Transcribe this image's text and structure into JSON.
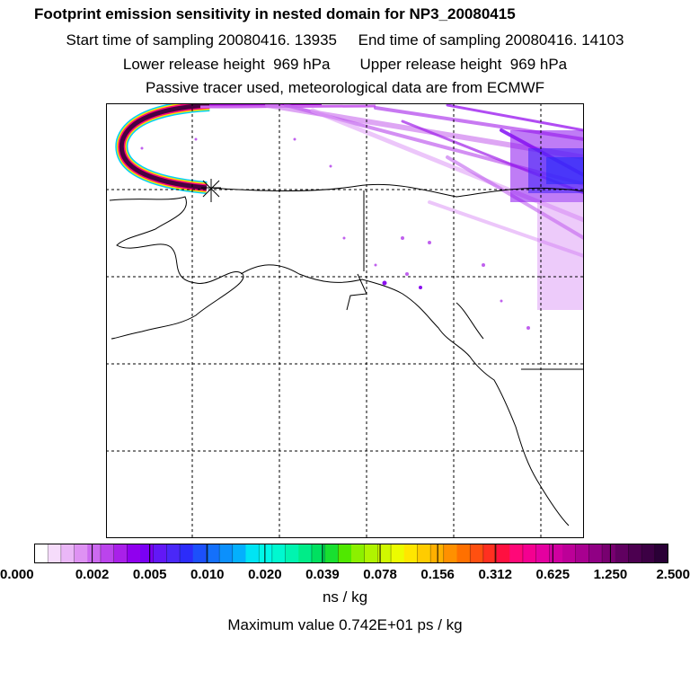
{
  "title": "Footprint emission sensitivity in nested domain for NP3_20080415",
  "start_label": "Start time of sampling 20080416. 13935",
  "end_label": "End time of sampling 20080416. 14103",
  "lower_label": "Lower release height  969 hPa",
  "upper_label": "Upper release height  969 hPa",
  "tracer_label": "Passive tracer used, meteorological data are from ECMWF",
  "colorbar": {
    "ticks": [
      "0.000",
      "0.002",
      "0.005",
      "0.010",
      "0.020",
      "0.039",
      "0.078",
      "0.156",
      "0.312",
      "0.625",
      "1.250",
      "2.500"
    ],
    "colors": [
      "#ffffff",
      "#f6dcfb",
      "#eab7f7",
      "#de92f3",
      "#cc6af0",
      "#bb44ec",
      "#a920e9",
      "#9000ee",
      "#7a00f4",
      "#6218f6",
      "#4a28f8",
      "#2c2cfa",
      "#1c50fb",
      "#1470fb",
      "#0c90fc",
      "#04b0fd",
      "#00e4f4",
      "#00f8e8",
      "#00f8d0",
      "#00f4b0",
      "#00ec88",
      "#00e060",
      "#18e030",
      "#50e800",
      "#8cf000",
      "#b0f400",
      "#d0f800",
      "#ecfc00",
      "#ffe600",
      "#ffcc00",
      "#ffb000",
      "#ff9000",
      "#ff7000",
      "#ff5010",
      "#ff3020",
      "#ff1040",
      "#ff0878",
      "#f40090",
      "#e400a0",
      "#d000a0",
      "#bc0098",
      "#a80090",
      "#900084",
      "#780070",
      "#600060",
      "#4c0050",
      "#3c0044",
      "#2a0036"
    ]
  },
  "units": "ns / kg",
  "max_value": "Maximum value  0.742E+01 ps / kg",
  "map": {
    "grid_lines_x": 5,
    "grid_lines_y": 5
  }
}
